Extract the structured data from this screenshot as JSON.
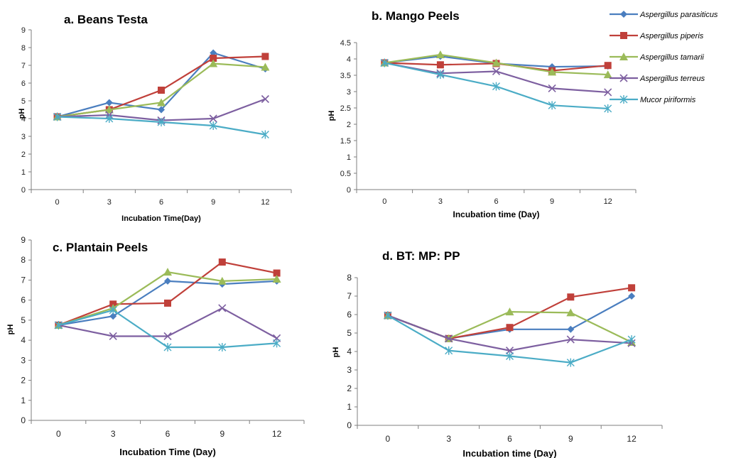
{
  "legend": {
    "placement": "top-right",
    "items": [
      {
        "name": "Aspergillus parasiticus",
        "color": "#4a7ebf",
        "marker": "diamond"
      },
      {
        "name": "Aspergillus piperis",
        "color": "#c0403a",
        "marker": "square"
      },
      {
        "name": "Aspergillus tamarii",
        "color": "#9bbb59",
        "marker": "triangle"
      },
      {
        "name": "Aspergillus terreus",
        "color": "#7d5fa0",
        "marker": "x"
      },
      {
        "name": "Mucor piriformis",
        "color": "#4bacc6",
        "marker": "star"
      }
    ]
  },
  "chart_data": [
    {
      "type": "line",
      "title": "a. Beans Testa",
      "xlabel": "Incubation Time(Day)",
      "ylabel": "pH",
      "categories": [
        "0",
        "3",
        "6",
        "9",
        "12"
      ],
      "yticks": [
        "0",
        "1",
        "2",
        "3",
        "4",
        "5",
        "6",
        "7",
        "8",
        "9"
      ],
      "ylim": [
        0,
        9
      ],
      "grid": false,
      "series": [
        {
          "name": "Aspergillus parasiticus",
          "values": [
            4.1,
            4.9,
            4.5,
            7.7,
            6.8
          ]
        },
        {
          "name": "Aspergillus piperis",
          "values": [
            4.1,
            4.5,
            5.6,
            7.4,
            7.5
          ]
        },
        {
          "name": "Aspergillus tamarii",
          "values": [
            4.1,
            4.5,
            4.9,
            7.1,
            6.9
          ]
        },
        {
          "name": "Aspergillus terreus",
          "values": [
            4.1,
            4.2,
            3.9,
            4.0,
            5.1
          ]
        },
        {
          "name": "Mucor piriformis",
          "values": [
            4.1,
            4.0,
            3.8,
            3.6,
            3.1
          ]
        }
      ]
    },
    {
      "type": "line",
      "title": "b. Mango Peels",
      "xlabel": "Incubation time (Day)",
      "ylabel": "pH",
      "categories": [
        "0",
        "3",
        "6",
        "9",
        "12"
      ],
      "yticks": [
        "0",
        "0.5",
        "1",
        "1.5",
        "2",
        "2.5",
        "3",
        "3.5",
        "4",
        "4.5"
      ],
      "ylim": [
        0,
        4.5
      ],
      "grid": false,
      "series": [
        {
          "name": "Aspergillus parasiticus",
          "values": [
            3.88,
            4.08,
            3.86,
            3.76,
            3.78
          ]
        },
        {
          "name": "Aspergillus piperis",
          "values": [
            3.88,
            3.82,
            3.86,
            3.64,
            3.8
          ]
        },
        {
          "name": "Aspergillus tamarii",
          "values": [
            3.88,
            4.13,
            3.88,
            3.6,
            3.52
          ]
        },
        {
          "name": "Aspergillus terreus",
          "values": [
            3.88,
            3.56,
            3.62,
            3.1,
            2.98
          ]
        },
        {
          "name": "Mucor piriformis",
          "values": [
            3.88,
            3.52,
            3.16,
            2.58,
            2.48
          ]
        }
      ]
    },
    {
      "type": "line",
      "title": "c. Plantain Peels",
      "xlabel": "Incubation Time (Day)",
      "ylabel": "pH",
      "categories": [
        "0",
        "3",
        "6",
        "9",
        "12"
      ],
      "yticks": [
        "0",
        "1",
        "2",
        "3",
        "4",
        "5",
        "6",
        "7",
        "8",
        "9"
      ],
      "ylim": [
        0,
        9
      ],
      "grid": false,
      "series": [
        {
          "name": "Aspergillus parasiticus",
          "values": [
            4.75,
            5.2,
            6.95,
            6.8,
            6.95
          ]
        },
        {
          "name": "Aspergillus piperis",
          "values": [
            4.75,
            5.8,
            5.85,
            7.9,
            7.35
          ]
        },
        {
          "name": "Aspergillus tamarii",
          "values": [
            4.75,
            5.6,
            7.4,
            6.95,
            7.05
          ]
        },
        {
          "name": "Aspergillus terreus",
          "values": [
            4.75,
            4.2,
            4.2,
            5.6,
            4.1
          ]
        },
        {
          "name": "Mucor piriformis",
          "values": [
            4.75,
            5.5,
            3.65,
            3.65,
            3.85
          ]
        }
      ]
    },
    {
      "type": "line",
      "title": "d. BT: MP: PP",
      "xlabel": "Incubation time (Day)",
      "ylabel": "pH",
      "categories": [
        "0",
        "3",
        "6",
        "9",
        "12"
      ],
      "yticks": [
        "0",
        "1",
        "2",
        "3",
        "4",
        "5",
        "6",
        "7",
        "8"
      ],
      "ylim": [
        0,
        8
      ],
      "grid": false,
      "series": [
        {
          "name": "Aspergillus parasiticus",
          "values": [
            5.95,
            4.7,
            5.2,
            5.2,
            7.0
          ]
        },
        {
          "name": "Aspergillus piperis",
          "values": [
            5.95,
            4.7,
            5.3,
            6.95,
            7.45
          ]
        },
        {
          "name": "Aspergillus tamarii",
          "values": [
            5.95,
            4.7,
            6.15,
            6.1,
            4.5
          ]
        },
        {
          "name": "Aspergillus terreus",
          "values": [
            5.95,
            4.7,
            4.05,
            4.65,
            4.45
          ]
        },
        {
          "name": "Mucor piriformis",
          "values": [
            5.95,
            4.05,
            3.75,
            3.4,
            4.65
          ]
        }
      ]
    }
  ]
}
